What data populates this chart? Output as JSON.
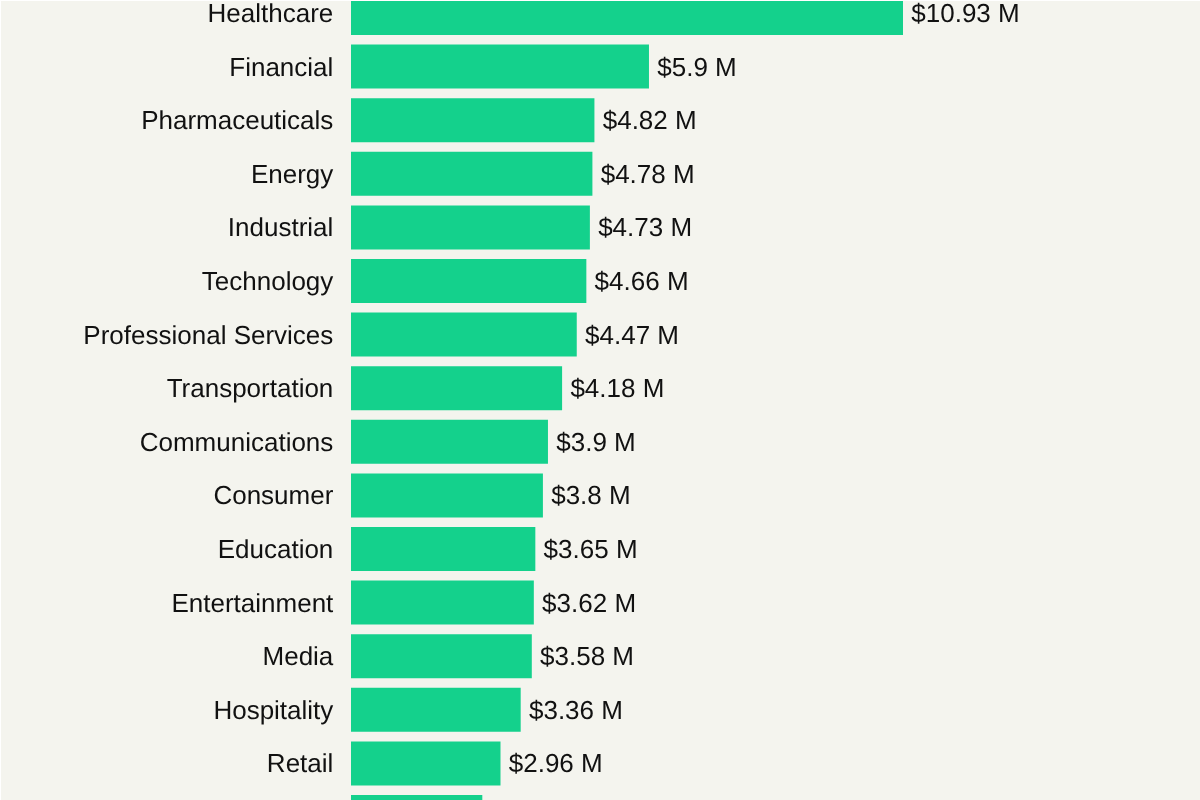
{
  "chart_data": {
    "type": "bar",
    "orientation": "horizontal",
    "categories": [
      "Healthcare",
      "Financial",
      "Pharmaceuticals",
      "Energy",
      "Industrial",
      "Technology",
      "Professional Services",
      "Transportation",
      "Communications",
      "Consumer",
      "Education",
      "Entertainment",
      "Media",
      "Hospitality",
      "Retail",
      null
    ],
    "values": [
      10.93,
      5.9,
      4.82,
      4.78,
      4.73,
      4.66,
      4.47,
      4.18,
      3.9,
      3.8,
      3.65,
      3.62,
      3.58,
      3.36,
      2.96,
      2.6
    ],
    "value_labels": [
      "$10.93 M",
      "$5.9 M",
      "$4.82 M",
      "$4.78 M",
      "$4.73 M",
      "$4.66 M",
      "$4.47 M",
      "$4.18 M",
      "$3.9 M",
      "$3.8 M",
      "$3.65 M",
      "$3.62 M",
      "$3.58 M",
      "$3.36 M",
      "$2.96 M",
      null
    ],
    "color": "#14d18c"
  }
}
